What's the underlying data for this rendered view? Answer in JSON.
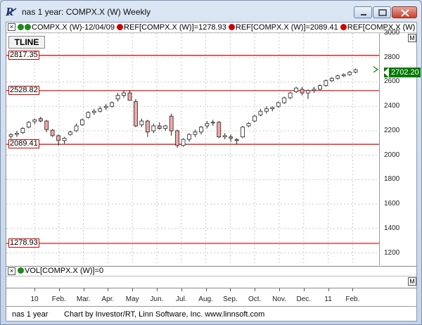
{
  "window": {
    "title": "nas 1 year: COMPX.X (W) Weekly"
  },
  "price_pane": {
    "close_label": "×",
    "header_parts": [
      {
        "dot1": "#1a8a1a",
        "dot2": "#1a8a1a",
        "text": "COMPX.X (W)-12/04/09 "
      },
      {
        "dot": "#cc0000",
        "text": "REF[COMPX.X (W)]=1278.93 "
      },
      {
        "dot": "#cc0000",
        "text": "REF[COMPX.X (W)]=2089.41 "
      },
      {
        "dot": "#cc0000",
        "text": "REF[COMPX.X (W)"
      }
    ],
    "tline_label": "TLINE",
    "current_price": "2702.20",
    "y_ticks": [
      "3000",
      "2800",
      "2600",
      "2400",
      "2200",
      "2000",
      "1800",
      "1600",
      "1400",
      "1200"
    ],
    "ref_lines": [
      {
        "label": "2817.35",
        "value": 2817.35
      },
      {
        "label": "2528.82",
        "value": 2528.82
      },
      {
        "label": "2089.41",
        "value": 2089.41
      },
      {
        "label": "1278.93",
        "value": 1278.93
      }
    ],
    "m_label": "M"
  },
  "volume_pane": {
    "close_label": "×",
    "dot": "#1a8a1a",
    "text": "VOL[COMPX.X (W)]=0",
    "m_label": "M"
  },
  "date_axis": {
    "labels": [
      "10",
      "Feb.",
      "Mar.",
      "Apr.",
      "May",
      "Jun.",
      "Jul.",
      "Aug.",
      "Sep.",
      "Oct.",
      "Nov.",
      "Dec.",
      "11",
      "Feb."
    ]
  },
  "status": {
    "left": "nas 1 year",
    "right": "Chart by Investor/RT, Linn Software, Inc. www.linnsoft.com"
  },
  "colors": {
    "up": "#ffffff",
    "down": "#f3a7a7",
    "ref": "#dd0000",
    "grid": "#c8c8c8"
  },
  "chart_data": {
    "type": "candlestick",
    "ylim": [
      1100,
      3000
    ],
    "candles": [
      {
        "o": 2155,
        "h": 2180,
        "l": 2135,
        "c": 2170
      },
      {
        "o": 2170,
        "h": 2200,
        "l": 2150,
        "c": 2180
      },
      {
        "o": 2185,
        "h": 2230,
        "l": 2175,
        "c": 2220
      },
      {
        "o": 2230,
        "h": 2280,
        "l": 2220,
        "c": 2270
      },
      {
        "o": 2275,
        "h": 2300,
        "l": 2255,
        "c": 2290
      },
      {
        "o": 2300,
        "h": 2315,
        "l": 2270,
        "c": 2280
      },
      {
        "o": 2280,
        "h": 2290,
        "l": 2190,
        "c": 2210
      },
      {
        "o": 2205,
        "h": 2215,
        "l": 2150,
        "c": 2160
      },
      {
        "o": 2160,
        "h": 2170,
        "l": 2080,
        "c": 2120
      },
      {
        "o": 2120,
        "h": 2150,
        "l": 2095,
        "c": 2140
      },
      {
        "o": 2170,
        "h": 2200,
        "l": 2160,
        "c": 2190
      },
      {
        "o": 2200,
        "h": 2260,
        "l": 2190,
        "c": 2240
      },
      {
        "o": 2250,
        "h": 2300,
        "l": 2240,
        "c": 2290
      },
      {
        "o": 2310,
        "h": 2360,
        "l": 2300,
        "c": 2350
      },
      {
        "o": 2350,
        "h": 2380,
        "l": 2330,
        "c": 2360
      },
      {
        "o": 2360,
        "h": 2400,
        "l": 2350,
        "c": 2380
      },
      {
        "o": 2390,
        "h": 2420,
        "l": 2370,
        "c": 2400
      },
      {
        "o": 2400,
        "h": 2440,
        "l": 2390,
        "c": 2430
      },
      {
        "o": 2460,
        "h": 2510,
        "l": 2440,
        "c": 2490
      },
      {
        "o": 2490,
        "h": 2530,
        "l": 2470,
        "c": 2510
      },
      {
        "o": 2510,
        "h": 2530,
        "l": 2450,
        "c": 2450
      },
      {
        "o": 2440,
        "h": 2460,
        "l": 2230,
        "c": 2240
      },
      {
        "o": 2250,
        "h": 2300,
        "l": 2230,
        "c": 2280
      },
      {
        "o": 2280,
        "h": 2290,
        "l": 2150,
        "c": 2190
      },
      {
        "o": 2200,
        "h": 2260,
        "l": 2180,
        "c": 2240
      },
      {
        "o": 2240,
        "h": 2270,
        "l": 2210,
        "c": 2220
      },
      {
        "o": 2220,
        "h": 2250,
        "l": 2200,
        "c": 2240
      },
      {
        "o": 2320,
        "h": 2340,
        "l": 2160,
        "c": 2200
      },
      {
        "o": 2200,
        "h": 2210,
        "l": 2060,
        "c": 2080
      },
      {
        "o": 2080,
        "h": 2140,
        "l": 2070,
        "c": 2130
      },
      {
        "o": 2130,
        "h": 2180,
        "l": 2110,
        "c": 2170
      },
      {
        "o": 2170,
        "h": 2210,
        "l": 2150,
        "c": 2190
      },
      {
        "o": 2190,
        "h": 2240,
        "l": 2170,
        "c": 2230
      },
      {
        "o": 2240,
        "h": 2280,
        "l": 2220,
        "c": 2260
      },
      {
        "o": 2270,
        "h": 2290,
        "l": 2240,
        "c": 2270
      },
      {
        "o": 2270,
        "h": 2280,
        "l": 2140,
        "c": 2150
      },
      {
        "o": 2150,
        "h": 2180,
        "l": 2130,
        "c": 2160
      },
      {
        "o": 2150,
        "h": 2170,
        "l": 2110,
        "c": 2140
      },
      {
        "o": 2130,
        "h": 2140,
        "l": 2090,
        "c": 2120
      },
      {
        "o": 2150,
        "h": 2240,
        "l": 2140,
        "c": 2230
      },
      {
        "o": 2240,
        "h": 2270,
        "l": 2230,
        "c": 2260
      },
      {
        "o": 2280,
        "h": 2330,
        "l": 2270,
        "c": 2320
      },
      {
        "o": 2330,
        "h": 2380,
        "l": 2320,
        "c": 2360
      },
      {
        "o": 2360,
        "h": 2400,
        "l": 2340,
        "c": 2380
      },
      {
        "o": 2380,
        "h": 2400,
        "l": 2360,
        "c": 2390
      },
      {
        "o": 2400,
        "h": 2440,
        "l": 2390,
        "c": 2430
      },
      {
        "o": 2430,
        "h": 2480,
        "l": 2420,
        "c": 2470
      },
      {
        "o": 2470,
        "h": 2520,
        "l": 2460,
        "c": 2510
      },
      {
        "o": 2520,
        "h": 2560,
        "l": 2510,
        "c": 2550
      },
      {
        "o": 2540,
        "h": 2560,
        "l": 2490,
        "c": 2510
      },
      {
        "o": 2510,
        "h": 2540,
        "l": 2460,
        "c": 2530
      },
      {
        "o": 2530,
        "h": 2560,
        "l": 2510,
        "c": 2540
      },
      {
        "o": 2540,
        "h": 2580,
        "l": 2530,
        "c": 2570
      },
      {
        "o": 2570,
        "h": 2620,
        "l": 2560,
        "c": 2610
      },
      {
        "o": 2610,
        "h": 2640,
        "l": 2600,
        "c": 2630
      },
      {
        "o": 2630,
        "h": 2660,
        "l": 2620,
        "c": 2650
      },
      {
        "o": 2650,
        "h": 2670,
        "l": 2640,
        "c": 2660
      },
      {
        "o": 2660,
        "h": 2690,
        "l": 2650,
        "c": 2680
      },
      {
        "o": 2680,
        "h": 2710,
        "l": 2670,
        "c": 2700
      }
    ]
  }
}
